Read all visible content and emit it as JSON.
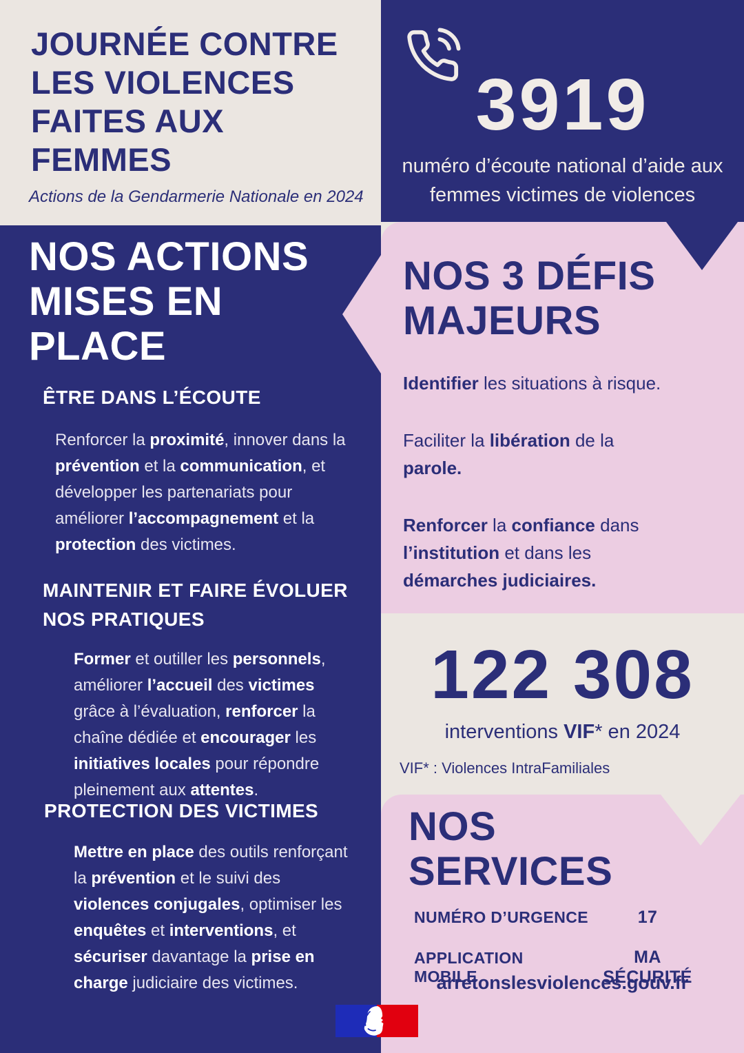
{
  "colors": {
    "navy": "#2b2e78",
    "pink": "#eccde2",
    "cream": "#ebe6e1",
    "text_on_navy": "#ffffff",
    "logo_blue": "#1e2cb8",
    "logo_red": "#e1000f"
  },
  "icons": {
    "phone": "phone-call-icon",
    "logo": "french-republic-marianne-logo"
  },
  "header": {
    "title": "JOURNÉE CONTRE\nLES VIOLENCES\nFAITES AUX\nFEMMES",
    "subtitle": "Actions de la Gendarmerie Nationale en 2024"
  },
  "hotline": {
    "number": "3919",
    "description": "numéro d’écoute national d’aide aux\nfemmes victimes de violences"
  },
  "actions": {
    "heading": "NOS ACTIONS\nMISES EN\nPLACE",
    "sections": [
      {
        "heading": "ÊTRE DANS L’ÉCOUTE",
        "body": [
          {
            "text": "Renforcer la "
          },
          {
            "text": "proximité",
            "bold": true
          },
          {
            "text": ", innover dans la "
          },
          {
            "text": "prévention",
            "bold": true
          },
          {
            "text": " et la "
          },
          {
            "text": "communication",
            "bold": true
          },
          {
            "text": ", et développer les partenariats pour améliorer "
          },
          {
            "text": "l’accompagnement",
            "bold": true
          },
          {
            "text": " et la "
          },
          {
            "text": "protection",
            "bold": true
          },
          {
            "text": " des victimes."
          }
        ]
      },
      {
        "heading": "MAINTENIR ET FAIRE ÉVOLUER\nNOS PRATIQUES",
        "body": [
          {
            "text": "Former",
            "bold": true
          },
          {
            "text": " et outiller les "
          },
          {
            "text": "personnels",
            "bold": true
          },
          {
            "text": ", améliorer "
          },
          {
            "text": "l’accueil",
            "bold": true
          },
          {
            "text": " des "
          },
          {
            "text": "victimes",
            "bold": true
          },
          {
            "text": " grâce à l’évaluation, "
          },
          {
            "text": "renforcer",
            "bold": true
          },
          {
            "text": " la chaîne dédiée et "
          },
          {
            "text": "encourager",
            "bold": true
          },
          {
            "text": " les "
          },
          {
            "text": "initiatives locales",
            "bold": true
          },
          {
            "text": " pour répondre pleinement aux "
          },
          {
            "text": "attentes",
            "bold": true
          },
          {
            "text": "."
          }
        ]
      },
      {
        "heading": "PROTECTION DES VICTIMES",
        "body": [
          {
            "text": "Mettre en place",
            "bold": true
          },
          {
            "text": " des outils renforçant la "
          },
          {
            "text": "prévention",
            "bold": true
          },
          {
            "text": " et le suivi des "
          },
          {
            "text": "violences conjugales",
            "bold": true
          },
          {
            "text": ", optimiser les "
          },
          {
            "text": "enquêtes",
            "bold": true
          },
          {
            "text": " et "
          },
          {
            "text": "interventions",
            "bold": true
          },
          {
            "text": ", et "
          },
          {
            "text": "sécuriser",
            "bold": true
          },
          {
            "text": " davantage la "
          },
          {
            "text": "prise en charge",
            "bold": true
          },
          {
            "text": " judiciaire des victimes."
          }
        ]
      }
    ]
  },
  "defis": {
    "heading": "NOS 3 DÉFIS\nMAJEURS",
    "items": [
      [
        {
          "text": "Identifier",
          "bold": true
        },
        {
          "text": " les situations à risque."
        }
      ],
      [
        {
          "text": "Faciliter la "
        },
        {
          "text": "libération",
          "bold": true
        },
        {
          "text": " de la "
        },
        {
          "text": "parole.",
          "bold": true
        }
      ],
      [
        {
          "text": "Renforcer",
          "bold": true
        },
        {
          "text": " la "
        },
        {
          "text": "confiance",
          "bold": true
        },
        {
          "text": " dans "
        },
        {
          "text": "l’institution",
          "bold": true
        },
        {
          "text": " et dans les "
        },
        {
          "text": "démarches judiciaires.",
          "bold": true
        }
      ]
    ]
  },
  "stat": {
    "number": "122 308",
    "caption": [
      {
        "text": "interventions "
      },
      {
        "text": "VIF",
        "bold": true
      },
      {
        "text": "* en 2024"
      }
    ],
    "footnote": "VIF* : Violences IntraFamiliales"
  },
  "services": {
    "heading": "NOS\nSERVICES",
    "rows": [
      {
        "label": "NUMÉRO D’URGENCE",
        "value": "17"
      },
      {
        "label": "APPLICATION MOBILE",
        "value": "MA SÉCURITÉ"
      }
    ],
    "website": "arretonslesviolences.gouv.fr"
  }
}
